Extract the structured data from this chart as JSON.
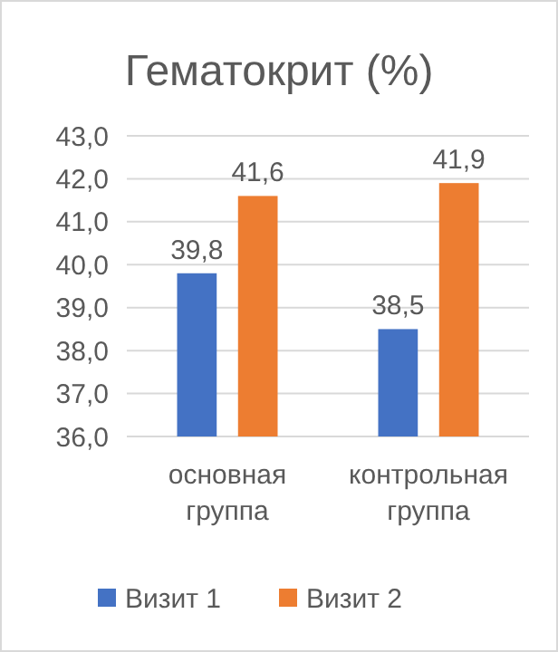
{
  "chart_data": {
    "type": "bar",
    "title": "Гематокрит (%)",
    "categories": [
      "основная группа",
      "контрольная группа"
    ],
    "series": [
      {
        "name": "Визит 1",
        "color": "#4472c4",
        "values": [
          39.8,
          38.5
        ],
        "value_labels": [
          "39,8",
          "38,5"
        ]
      },
      {
        "name": "Визит 2",
        "color": "#ed7d31",
        "values": [
          41.6,
          41.9
        ],
        "value_labels": [
          "41,6",
          "41,9"
        ]
      }
    ],
    "ylim": [
      36,
      43
    ],
    "yticks": [
      {
        "value": 36,
        "label": "36,0"
      },
      {
        "value": 37,
        "label": "37,0"
      },
      {
        "value": 38,
        "label": "38,0"
      },
      {
        "value": 39,
        "label": "39,0"
      },
      {
        "value": 40,
        "label": "40,0"
      },
      {
        "value": 41,
        "label": "41,0"
      },
      {
        "value": 42,
        "label": "42,0"
      },
      {
        "value": 43,
        "label": "43,0"
      }
    ],
    "grid": "y",
    "legend": "bottom"
  }
}
